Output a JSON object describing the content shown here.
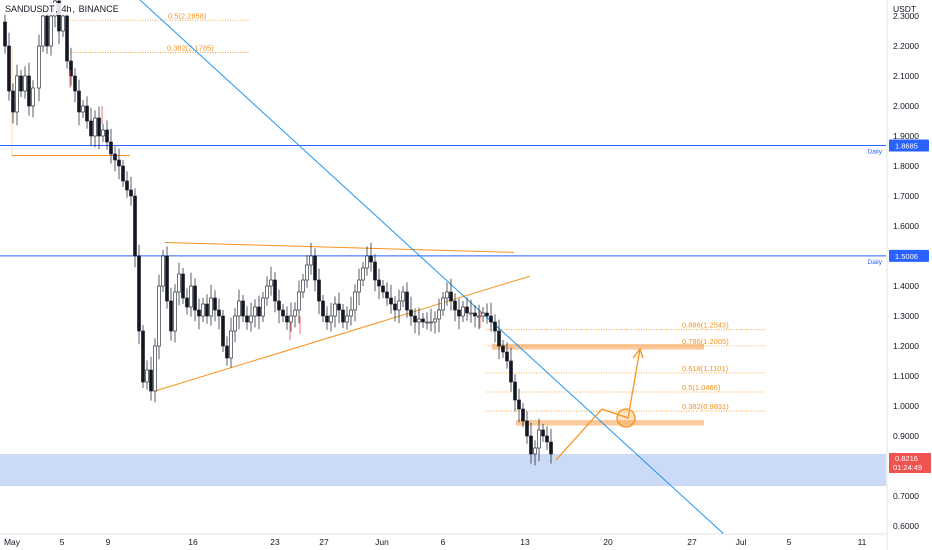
{
  "header": {
    "symbol": "SANDUSDT",
    "separator": ", ",
    "timeframe": "4h",
    "exchange_sep": ", ",
    "exchange": "BINANCE"
  },
  "axis": {
    "currency": "USDT",
    "y_ticks": [
      "2.3000",
      "2.2000",
      "2.1000",
      "2.0000",
      "1.9000",
      "1.8000",
      "1.7000",
      "1.6000",
      "1.5000",
      "1.4000",
      "1.3000",
      "1.2000",
      "1.1000",
      "1.0000",
      "0.9000",
      "0.8000",
      "0.7000",
      "0.6000"
    ],
    "y_values": [
      2.3,
      2.2,
      2.1,
      2.0,
      1.9,
      1.8,
      1.7,
      1.6,
      1.5,
      1.4,
      1.3,
      1.2,
      1.1,
      1.0,
      0.9,
      0.8,
      0.7,
      0.6
    ],
    "x_ticks": [
      "May",
      "5",
      "9",
      "16",
      "23",
      "27",
      "Jun",
      "6",
      "13",
      "20",
      "27",
      "Jul",
      "5",
      "11"
    ]
  },
  "levels": {
    "daily_upper": {
      "value": 1.8685,
      "label": "1.8685",
      "tag": "Daily"
    },
    "daily_lower": {
      "value": 1.5006,
      "label": "1.5006",
      "tag": "Daily"
    },
    "current_price": "0.8216",
    "countdown": "01:24:49"
  },
  "fib_top": [
    {
      "label": "0.5(2.2858)",
      "value": 2.2858
    },
    {
      "label": "0.382(2.1785)",
      "value": 2.1785
    }
  ],
  "fib_bottom": [
    {
      "label": "0.886(1.2543)",
      "value": 1.2543
    },
    {
      "label": "0.786(1.2005)",
      "value": 1.2005
    },
    {
      "label": "0.618(1.1101)",
      "value": 1.1101
    },
    {
      "label": "0.5(1.0466)",
      "value": 1.0466
    },
    {
      "label": "0.382(0.9831)",
      "value": 0.9831
    }
  ],
  "colors": {
    "up_candle": "#ffffff",
    "down_candle": "#131722",
    "wick_up": "#131722",
    "volume_red": "#ef5350",
    "blue_line": "#2962ff",
    "trend_blue": "#2196f3",
    "orange": "#f7931e",
    "zone_orange": "#f9c89b",
    "zone_blue": "#c5d6f5",
    "price_tag": "#ef5350"
  },
  "chart_data": {
    "type": "candlestick",
    "title": "SANDUSDT, 4h, BINANCE",
    "ylabel": "USDT",
    "ylim": [
      0.6,
      2.32
    ],
    "closes_approx": [
      2.2,
      2.3,
      2.1,
      2.15,
      2.05,
      2.25,
      2.35,
      2.1,
      2.0,
      1.95,
      1.9,
      1.85,
      1.8,
      1.7,
      1.5,
      1.25,
      1.05,
      1.3,
      1.45,
      1.35,
      1.4,
      1.3,
      1.25,
      1.2,
      1.28,
      1.35,
      1.3,
      1.4,
      1.32,
      1.28,
      1.3,
      1.45,
      1.38,
      1.3,
      1.35,
      1.42,
      1.5,
      1.4,
      1.36,
      1.32,
      1.3,
      1.28,
      1.3,
      1.36,
      1.32,
      1.28,
      1.22,
      1.1,
      1.0,
      0.92,
      0.82,
      0.88,
      0.84,
      0.82
    ],
    "annotations": [
      "0.5(2.2858)",
      "0.382(2.1785)",
      "0.886(1.2543)",
      "0.786(1.2005)",
      "0.618(1.1101)",
      "0.5(1.0466)",
      "0.382(0.9831)",
      "1.8685",
      "1.5006",
      "Daily",
      "Daily"
    ]
  }
}
